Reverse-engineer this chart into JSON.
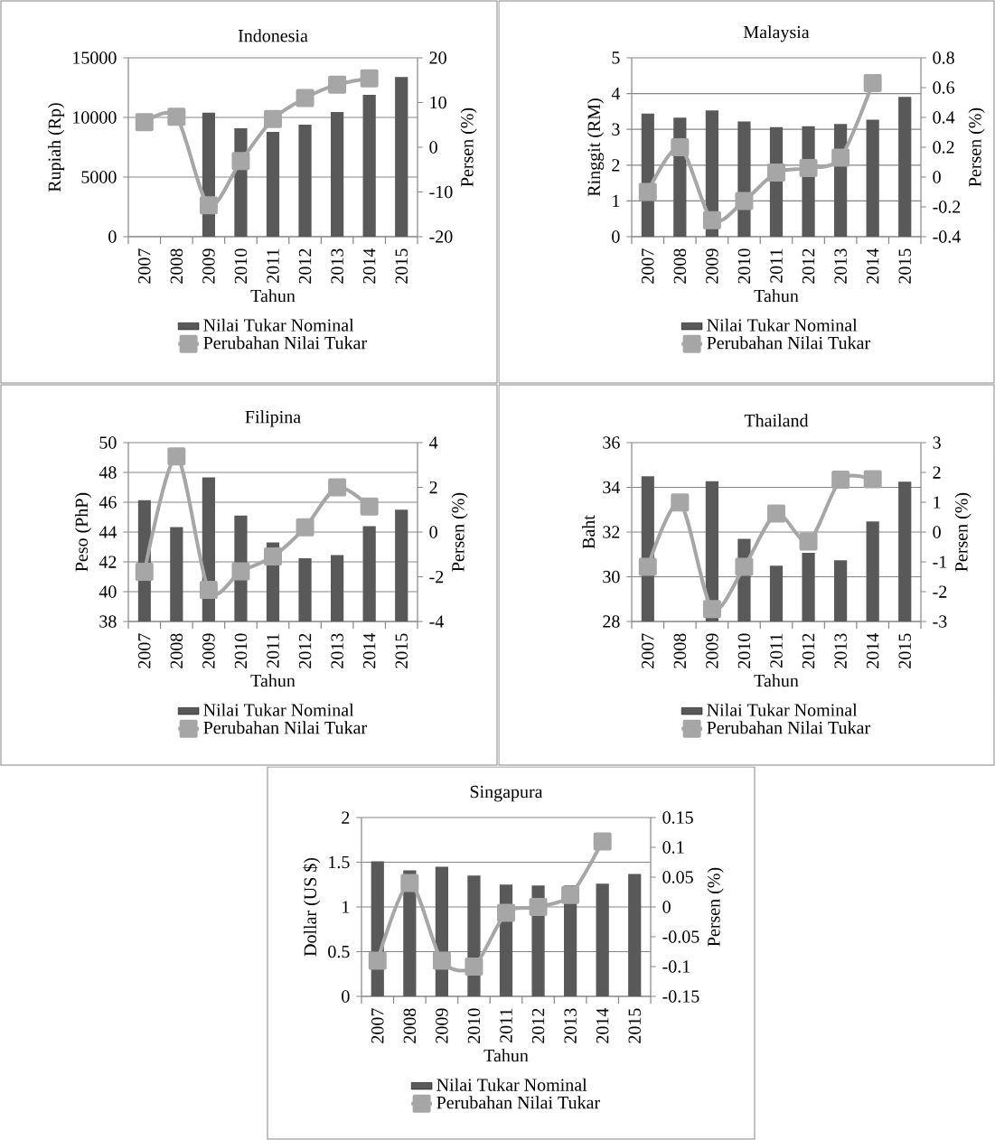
{
  "chart_data": [
    {
      "type": "bar",
      "title": "Indonesia",
      "xlabel": "Tahun",
      "ylabel": "Rupiah (Rp)",
      "y2label": "Persen (%)",
      "categories": [
        "2007",
        "2008",
        "2009",
        "2010",
        "2011",
        "2012",
        "2013",
        "2014",
        "2015"
      ],
      "series": [
        {
          "name": "Nilai Tukar Nominal",
          "color": "#595959",
          "values": [
            null,
            null,
            10400,
            9100,
            8780,
            9390,
            10460,
            11900,
            13400
          ]
        },
        {
          "name": "Perubahan Nilai Tukar",
          "type": "line",
          "axis": "y2",
          "marker": "square",
          "color": "#a6a6a6",
          "values": [
            5.6,
            6.8,
            -13,
            -3.1,
            6.3,
            11,
            14,
            15.4,
            null
          ]
        }
      ],
      "ylim": [
        0,
        15000
      ],
      "yticks": [
        0,
        5000,
        10000,
        15000
      ],
      "y2lim": [
        -20,
        20
      ],
      "y2ticks": [
        -20,
        -10,
        0,
        10,
        20
      ],
      "grid": "y",
      "legend": "bottom"
    },
    {
      "type": "bar",
      "title": "Malaysia",
      "xlabel": "Tahun",
      "ylabel": "Ringgit (RM)",
      "y2label": "Persen (%)",
      "categories": [
        "2007",
        "2008",
        "2009",
        "2010",
        "2011",
        "2012",
        "2013",
        "2014",
        "2015"
      ],
      "series": [
        {
          "name": "Nilai Tukar Nominal",
          "color": "#595959",
          "values": [
            3.44,
            3.33,
            3.53,
            3.22,
            3.06,
            3.09,
            3.15,
            3.27,
            3.91
          ]
        },
        {
          "name": "Perubahan Nilai Tukar",
          "type": "line",
          "axis": "y2",
          "marker": "square",
          "color": "#a6a6a6",
          "values": [
            -0.1,
            0.2,
            -0.29,
            -0.16,
            0.03,
            0.06,
            0.13,
            0.63,
            null
          ]
        }
      ],
      "ylim": [
        0,
        5
      ],
      "yticks": [
        0,
        1,
        2,
        3,
        4,
        5
      ],
      "y2lim": [
        -0.4,
        0.8
      ],
      "y2ticks": [
        -0.4,
        -0.2,
        0,
        0.2,
        0.4,
        0.6,
        0.8
      ],
      "grid": "y",
      "legend": "bottom"
    },
    {
      "type": "bar",
      "title": "Filipina",
      "xlabel": "Tahun",
      "ylabel": "Peso (PhP)",
      "y2label": "Persen (%)",
      "categories": [
        "2007",
        "2008",
        "2009",
        "2010",
        "2011",
        "2012",
        "2013",
        "2014",
        "2015"
      ],
      "series": [
        {
          "name": "Nilai Tukar Nominal",
          "color": "#595959",
          "values": [
            46.14,
            44.33,
            47.66,
            45.1,
            43.3,
            42.24,
            42.45,
            44.4,
            45.5
          ]
        },
        {
          "name": "Perubahan Nilai Tukar",
          "type": "line",
          "axis": "y2",
          "marker": "square",
          "color": "#a6a6a6",
          "values": [
            -1.78,
            3.38,
            -2.59,
            -1.76,
            -1.09,
            0.21,
            2.0,
            1.14,
            null
          ]
        }
      ],
      "ylim": [
        38,
        50
      ],
      "yticks": [
        38,
        40,
        42,
        44,
        46,
        48,
        50
      ],
      "y2lim": [
        -4,
        4
      ],
      "y2ticks": [
        -4,
        -2,
        0,
        2,
        4
      ],
      "grid": "y",
      "legend": "bottom"
    },
    {
      "type": "bar",
      "title": "Thailand",
      "xlabel": "Tahun",
      "ylabel": "Baht",
      "y2label": "Persen (%)",
      "categories": [
        "2007",
        "2008",
        "2009",
        "2010",
        "2011",
        "2012",
        "2013",
        "2014",
        "2015"
      ],
      "series": [
        {
          "name": "Nilai Tukar Nominal",
          "color": "#595959",
          "values": [
            34.5,
            null,
            34.27,
            31.7,
            30.5,
            31.07,
            30.74,
            32.48,
            34.25
          ]
        },
        {
          "name": "Perubahan Nilai Tukar",
          "type": "line",
          "axis": "y2",
          "marker": "square",
          "color": "#a6a6a6",
          "values": [
            -1.17,
            0.99,
            -2.58,
            -1.17,
            0.62,
            -0.32,
            1.76,
            1.77,
            null
          ]
        }
      ],
      "ylim": [
        28,
        36
      ],
      "yticks": [
        28,
        30,
        32,
        34,
        36
      ],
      "y2lim": [
        -3,
        3
      ],
      "y2ticks": [
        -3,
        -2,
        -1,
        0,
        1,
        2,
        3
      ],
      "grid": "y",
      "legend": "bottom"
    },
    {
      "type": "bar",
      "title": "Singapura",
      "xlabel": "Tahun",
      "ylabel": "Dollar (US $)",
      "y2label": "Persen (%)",
      "categories": [
        "2007",
        "2008",
        "2009",
        "2010",
        "2011",
        "2012",
        "2013",
        "2014",
        "2015"
      ],
      "series": [
        {
          "name": "Nilai Tukar Nominal",
          "color": "#595959",
          "values": [
            1.51,
            1.41,
            1.45,
            1.35,
            1.25,
            1.24,
            1.24,
            1.26,
            1.37
          ]
        },
        {
          "name": "Perubahan Nilai Tukar",
          "type": "line",
          "axis": "y2",
          "marker": "square",
          "color": "#a6a6a6",
          "values": [
            -0.09,
            0.04,
            -0.09,
            -0.1,
            -0.01,
            0.0,
            0.02,
            0.11,
            null
          ]
        }
      ],
      "ylim": [
        0,
        2
      ],
      "yticks": [
        0,
        0.5,
        1,
        1.5,
        2
      ],
      "y2lim": [
        -0.15,
        0.15
      ],
      "y2ticks": [
        -0.15,
        -0.1,
        -0.05,
        0,
        0.05,
        0.1,
        0.15
      ],
      "grid": "y",
      "legend": "bottom"
    }
  ]
}
